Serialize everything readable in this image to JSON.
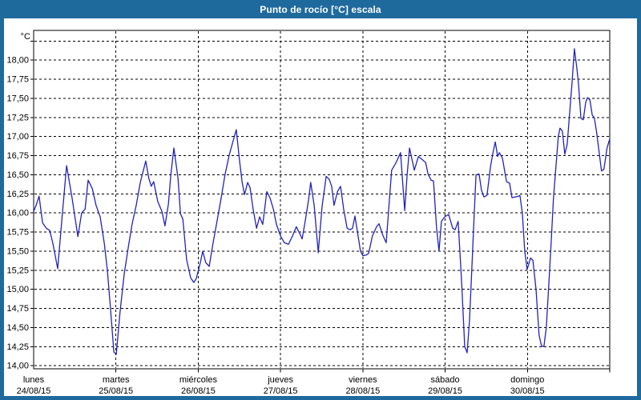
{
  "window": {
    "title": "Punto de rocío [°C] escala"
  },
  "chart_data": {
    "type": "line",
    "title": "Punto de rocío [°C] escala",
    "ylabel": "°C",
    "grid": true,
    "line_color": "#2222bd",
    "frame_color": "#1f6a9d",
    "x_axis": {
      "unit": "hours since 24/08/15 00:00",
      "range_hours": [
        0,
        168
      ],
      "day_tick_step_hours": 24,
      "days": [
        {
          "name": "lunes",
          "date": "24/08/15",
          "hour": 0
        },
        {
          "name": "martes",
          "date": "25/08/15",
          "hour": 24
        },
        {
          "name": "miércoles",
          "date": "26/08/15",
          "hour": 48
        },
        {
          "name": "jueves",
          "date": "27/08/15",
          "hour": 72
        },
        {
          "name": "viernes",
          "date": "28/08/15",
          "hour": 96
        },
        {
          "name": "sábado",
          "date": "29/08/15",
          "hour": 120
        },
        {
          "name": "domingo",
          "date": "30/08/15",
          "hour": 144
        }
      ]
    },
    "y_axis": {
      "unit_label": "°C",
      "min": 13.96,
      "max": 18.39,
      "grid_step": 0.25,
      "grid_values_max": 18.25,
      "ticks": [
        {
          "value": 14.0,
          "label": "14,00"
        },
        {
          "value": 14.25,
          "label": "14,25"
        },
        {
          "value": 14.5,
          "label": "14,50"
        },
        {
          "value": 14.75,
          "label": "14,75"
        },
        {
          "value": 15.0,
          "label": "15,00"
        },
        {
          "value": 15.25,
          "label": "15,25"
        },
        {
          "value": 15.5,
          "label": "15,50"
        },
        {
          "value": 15.75,
          "label": "15,75"
        },
        {
          "value": 16.0,
          "label": "16,00"
        },
        {
          "value": 16.25,
          "label": "16,25"
        },
        {
          "value": 16.5,
          "label": "16,50"
        },
        {
          "value": 16.75,
          "label": "16,75"
        },
        {
          "value": 17.0,
          "label": "17,00"
        },
        {
          "value": 17.25,
          "label": "17,25"
        },
        {
          "value": 17.5,
          "label": "17,50"
        },
        {
          "value": 17.75,
          "label": "17,75"
        },
        {
          "value": 18.0,
          "label": "18,00"
        }
      ]
    },
    "series": [
      {
        "name": "Punto de rocío",
        "points": [
          [
            0,
            16.02
          ],
          [
            0.7,
            16.1
          ],
          [
            1.6,
            16.22
          ],
          [
            2.6,
            15.87
          ],
          [
            3.7,
            15.8
          ],
          [
            4.7,
            15.77
          ],
          [
            5.6,
            15.6
          ],
          [
            7.0,
            15.27
          ],
          [
            8.2,
            15.9
          ],
          [
            9.6,
            16.62
          ],
          [
            11.2,
            16.2
          ],
          [
            12.9,
            15.69
          ],
          [
            14.0,
            16.0
          ],
          [
            15.0,
            16.05
          ],
          [
            15.9,
            16.43
          ],
          [
            17.1,
            16.32
          ],
          [
            18.2,
            16.1
          ],
          [
            19.4,
            15.95
          ],
          [
            20.6,
            15.6
          ],
          [
            21.5,
            15.25
          ],
          [
            22.4,
            14.75
          ],
          [
            23.4,
            14.18
          ],
          [
            24.1,
            14.15
          ],
          [
            25.2,
            14.7
          ],
          [
            26.4,
            15.2
          ],
          [
            27.6,
            15.55
          ],
          [
            28.7,
            15.85
          ],
          [
            29.9,
            16.1
          ],
          [
            31.1,
            16.4
          ],
          [
            32.7,
            16.68
          ],
          [
            33.6,
            16.45
          ],
          [
            34.3,
            16.35
          ],
          [
            35.0,
            16.41
          ],
          [
            36.2,
            16.15
          ],
          [
            37.4,
            16.02
          ],
          [
            38.3,
            15.83
          ],
          [
            39.3,
            16.12
          ],
          [
            40.0,
            16.5
          ],
          [
            40.9,
            16.85
          ],
          [
            42.1,
            16.45
          ],
          [
            42.8,
            15.99
          ],
          [
            43.5,
            15.92
          ],
          [
            44.6,
            15.39
          ],
          [
            45.8,
            15.15
          ],
          [
            46.7,
            15.09
          ],
          [
            47.4,
            15.14
          ],
          [
            48.6,
            15.35
          ],
          [
            49.3,
            15.5
          ],
          [
            50.2,
            15.35
          ],
          [
            51.2,
            15.3
          ],
          [
            52.3,
            15.6
          ],
          [
            53.5,
            15.9
          ],
          [
            54.7,
            16.2
          ],
          [
            55.8,
            16.5
          ],
          [
            57.0,
            16.75
          ],
          [
            58.2,
            16.95
          ],
          [
            59.1,
            17.09
          ],
          [
            60.0,
            16.7
          ],
          [
            60.8,
            16.4
          ],
          [
            61.5,
            16.24
          ],
          [
            62.4,
            16.4
          ],
          [
            63.1,
            16.33
          ],
          [
            64.0,
            16.05
          ],
          [
            65.0,
            15.8
          ],
          [
            65.9,
            15.95
          ],
          [
            66.8,
            15.85
          ],
          [
            68.0,
            16.28
          ],
          [
            68.9,
            16.2
          ],
          [
            69.9,
            16.05
          ],
          [
            70.8,
            15.85
          ],
          [
            72.0,
            15.7
          ],
          [
            73.1,
            15.61
          ],
          [
            74.3,
            15.59
          ],
          [
            75.5,
            15.7
          ],
          [
            76.6,
            15.82
          ],
          [
            77.6,
            15.73
          ],
          [
            78.3,
            15.66
          ],
          [
            79.2,
            15.9
          ],
          [
            80.1,
            16.15
          ],
          [
            80.8,
            16.4
          ],
          [
            81.8,
            16.1
          ],
          [
            83.0,
            15.48
          ],
          [
            84.1,
            16.08
          ],
          [
            85.3,
            16.48
          ],
          [
            86.2,
            16.44
          ],
          [
            86.9,
            16.35
          ],
          [
            87.6,
            16.1
          ],
          [
            88.6,
            16.28
          ],
          [
            89.5,
            16.35
          ],
          [
            90.4,
            16.05
          ],
          [
            91.4,
            15.8
          ],
          [
            92.3,
            15.78
          ],
          [
            93.0,
            15.8
          ],
          [
            93.7,
            15.96
          ],
          [
            94.6,
            15.7
          ],
          [
            95.3,
            15.5
          ],
          [
            96.0,
            15.44
          ],
          [
            97.0,
            15.45
          ],
          [
            97.7,
            15.47
          ],
          [
            98.8,
            15.7
          ],
          [
            100.0,
            15.82
          ],
          [
            100.7,
            15.86
          ],
          [
            101.9,
            15.7
          ],
          [
            102.8,
            15.61
          ],
          [
            103.8,
            16.2
          ],
          [
            104.4,
            16.56
          ],
          [
            105.6,
            16.65
          ],
          [
            107.0,
            16.79
          ],
          [
            108.2,
            16.03
          ],
          [
            108.9,
            16.5
          ],
          [
            109.6,
            16.85
          ],
          [
            111.0,
            16.56
          ],
          [
            112.2,
            16.74
          ],
          [
            113.3,
            16.7
          ],
          [
            114.3,
            16.66
          ],
          [
            115.0,
            16.51
          ],
          [
            115.9,
            16.43
          ],
          [
            116.6,
            16.42
          ],
          [
            117.5,
            15.8
          ],
          [
            118.2,
            15.5
          ],
          [
            118.9,
            15.89
          ],
          [
            119.9,
            15.95
          ],
          [
            121.0,
            15.98
          ],
          [
            122.2,
            15.8
          ],
          [
            122.9,
            15.78
          ],
          [
            123.8,
            15.89
          ],
          [
            124.8,
            15.1
          ],
          [
            125.7,
            14.25
          ],
          [
            126.4,
            14.17
          ],
          [
            127.1,
            14.6
          ],
          [
            127.8,
            15.3
          ],
          [
            128.5,
            16.0
          ],
          [
            129.0,
            16.5
          ],
          [
            129.9,
            16.51
          ],
          [
            130.6,
            16.3
          ],
          [
            131.3,
            16.21
          ],
          [
            132.2,
            16.23
          ],
          [
            133.2,
            16.6
          ],
          [
            133.9,
            16.78
          ],
          [
            134.6,
            16.93
          ],
          [
            135.3,
            16.74
          ],
          [
            135.8,
            16.79
          ],
          [
            136.7,
            16.72
          ],
          [
            137.9,
            16.41
          ],
          [
            138.8,
            16.39
          ],
          [
            139.5,
            16.2
          ],
          [
            140.4,
            16.21
          ],
          [
            141.4,
            16.22
          ],
          [
            141.8,
            16.23
          ],
          [
            142.5,
            16.0
          ],
          [
            143.2,
            15.5
          ],
          [
            143.9,
            15.26
          ],
          [
            144.9,
            15.41
          ],
          [
            145.6,
            15.38
          ],
          [
            146.5,
            15.0
          ],
          [
            147.4,
            14.4
          ],
          [
            148.1,
            14.26
          ],
          [
            148.8,
            14.25
          ],
          [
            149.5,
            14.5
          ],
          [
            150.2,
            15.04
          ],
          [
            150.9,
            15.6
          ],
          [
            151.6,
            16.2
          ],
          [
            152.3,
            16.6
          ],
          [
            153.0,
            17.0
          ],
          [
            153.5,
            17.11
          ],
          [
            154.2,
            17.07
          ],
          [
            154.9,
            16.77
          ],
          [
            155.6,
            16.9
          ],
          [
            156.3,
            17.3
          ],
          [
            157.0,
            17.7
          ],
          [
            157.7,
            18.15
          ],
          [
            158.4,
            17.9
          ],
          [
            158.9,
            17.68
          ],
          [
            159.6,
            17.24
          ],
          [
            160.3,
            17.22
          ],
          [
            161.0,
            17.45
          ],
          [
            161.5,
            17.51
          ],
          [
            162.2,
            17.48
          ],
          [
            162.9,
            17.28
          ],
          [
            163.5,
            17.25
          ],
          [
            164.2,
            17.05
          ],
          [
            164.9,
            16.8
          ],
          [
            165.6,
            16.55
          ],
          [
            166.3,
            16.57
          ],
          [
            167.2,
            16.85
          ],
          [
            168.0,
            16.97
          ]
        ]
      }
    ]
  }
}
